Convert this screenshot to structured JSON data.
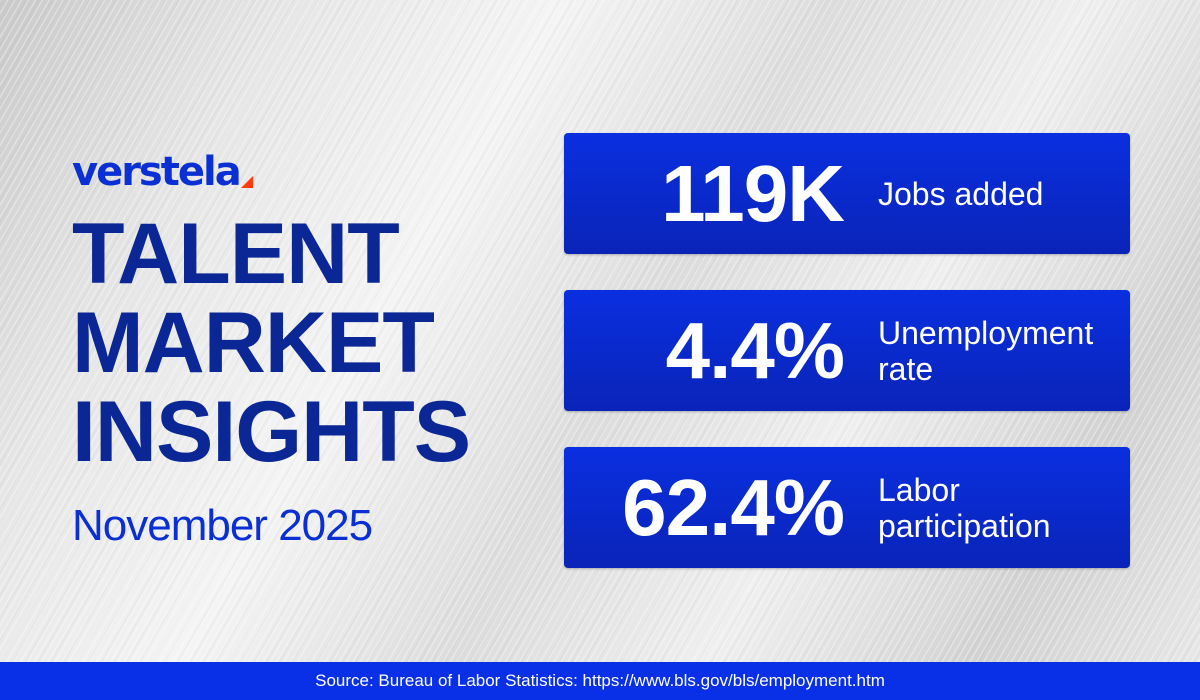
{
  "colors": {
    "brand_blue": "#0a2fd4",
    "title_navy": "#0b2796",
    "accent_orange": "#ff3b0f",
    "card_blue": "#0a2fe0",
    "card_blue_dark": "#0a24b8",
    "footer_blue": "#0930e6"
  },
  "brand": {
    "name": "verstela",
    "mark_icon": "orange-triangle-icon"
  },
  "header": {
    "title_lines": [
      "TALENT",
      "MARKET",
      "INSIGHTS"
    ],
    "date": "November 2025"
  },
  "stats": [
    {
      "value": "119K",
      "label": "Jobs added"
    },
    {
      "value": "4.4%",
      "label": "Unemployment rate"
    },
    {
      "value": "62.4%",
      "label": "Labor participation"
    }
  ],
  "footer": {
    "source": "Source: Bureau of Labor Statistics: https://www.bls.gov/bls/employment.htm"
  }
}
